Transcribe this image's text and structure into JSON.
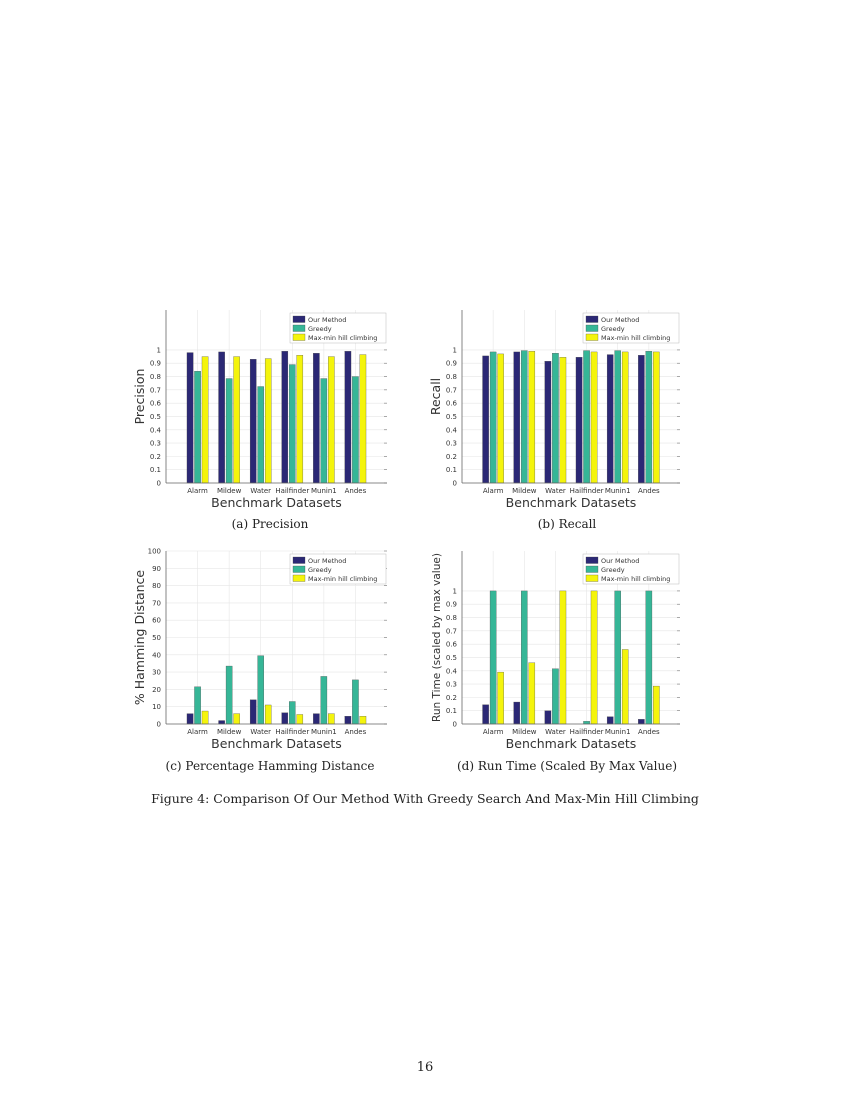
{
  "colors": {
    "our": "#2b2875",
    "greedy": "#36b697",
    "mmhc": "#f4f40c"
  },
  "chart_data": [
    {
      "type": "bar",
      "id": "a",
      "caption": "(a) Precision",
      "ylabel": "Precision",
      "xlabel": "Benchmark Datasets",
      "ylim": [
        0,
        1.3
      ],
      "yticks": [
        0,
        0.1,
        0.2,
        0.3,
        0.4,
        0.5,
        0.6,
        0.7,
        0.8,
        0.9,
        1
      ],
      "categories": [
        "Alarm",
        "Mildew",
        "Water",
        "Hailfinder",
        "Munin1",
        "Andes"
      ],
      "legend": "top-right",
      "series": [
        {
          "name": "Our Method",
          "values": [
            0.98,
            0.985,
            0.93,
            0.99,
            0.975,
            0.99
          ]
        },
        {
          "name": "Greedy",
          "values": [
            0.84,
            0.785,
            0.725,
            0.89,
            0.785,
            0.8
          ]
        },
        {
          "name": "Max-min hill climbing",
          "values": [
            0.95,
            0.95,
            0.935,
            0.96,
            0.95,
            0.965
          ]
        }
      ]
    },
    {
      "type": "bar",
      "id": "b",
      "caption": "(b) Recall",
      "ylabel": "Recall",
      "xlabel": "Benchmark Datasets",
      "ylim": [
        0,
        1.3
      ],
      "yticks": [
        0,
        0.1,
        0.2,
        0.3,
        0.4,
        0.5,
        0.6,
        0.7,
        0.8,
        0.9,
        1
      ],
      "categories": [
        "Alarm",
        "Mildew",
        "Water",
        "Hailfinder",
        "Munin1",
        "Andes"
      ],
      "legend": "top-right",
      "series": [
        {
          "name": "Our Method",
          "values": [
            0.955,
            0.985,
            0.915,
            0.945,
            0.965,
            0.96
          ]
        },
        {
          "name": "Greedy",
          "values": [
            0.985,
            0.995,
            0.975,
            0.995,
            0.995,
            0.99
          ]
        },
        {
          "name": "Max-min hill climbing",
          "values": [
            0.97,
            0.99,
            0.945,
            0.985,
            0.985,
            0.985
          ]
        }
      ]
    },
    {
      "type": "bar",
      "id": "c",
      "caption": "(c) Percentage Hamming Distance",
      "ylabel": "% Hamming Distance",
      "xlabel": "Benchmark Datasets",
      "ylim": [
        0,
        100
      ],
      "yticks": [
        0,
        10,
        20,
        30,
        40,
        50,
        60,
        70,
        80,
        90,
        100
      ],
      "categories": [
        "Alarm",
        "Mildew",
        "Water",
        "Hailfinder",
        "Munin1",
        "Andes"
      ],
      "legend": "top-right",
      "series": [
        {
          "name": "Our Method",
          "values": [
            6,
            2,
            14,
            6.5,
            6,
            4.5
          ]
        },
        {
          "name": "Greedy",
          "values": [
            21.5,
            33.5,
            39.5,
            13,
            27.5,
            25.5
          ]
        },
        {
          "name": "Max-min hill climbing",
          "values": [
            7.5,
            6,
            11,
            5.5,
            6,
            4.5
          ]
        }
      ]
    },
    {
      "type": "bar",
      "id": "d",
      "caption": "(d) Run Time (Scaled By Max Value)",
      "ylabel": "Run Time (scaled by max value)",
      "xlabel": "Benchmark Datasets",
      "ylim": [
        0,
        1.3
      ],
      "yticks": [
        0,
        0.1,
        0.2,
        0.3,
        0.4,
        0.5,
        0.6,
        0.7,
        0.8,
        0.9,
        1
      ],
      "categories": [
        "Alarm",
        "Mildew",
        "Water",
        "Hailfinder",
        "Munin1",
        "Andes"
      ],
      "legend": "top-right",
      "series": [
        {
          "name": "Our Method",
          "values": [
            0.145,
            0.165,
            0.1,
            0,
            0.055,
            0.035
          ]
        },
        {
          "name": "Greedy",
          "values": [
            1,
            1,
            0.415,
            0.02,
            1,
            1
          ]
        },
        {
          "name": "Max-min hill climbing",
          "values": [
            0.39,
            0.46,
            1,
            1,
            0.56,
            0.285
          ]
        }
      ]
    }
  ],
  "figure_caption": "Figure 4: Comparison Of Our Method With Greedy Search And Max-Min Hill Climbing",
  "page_number": "16"
}
